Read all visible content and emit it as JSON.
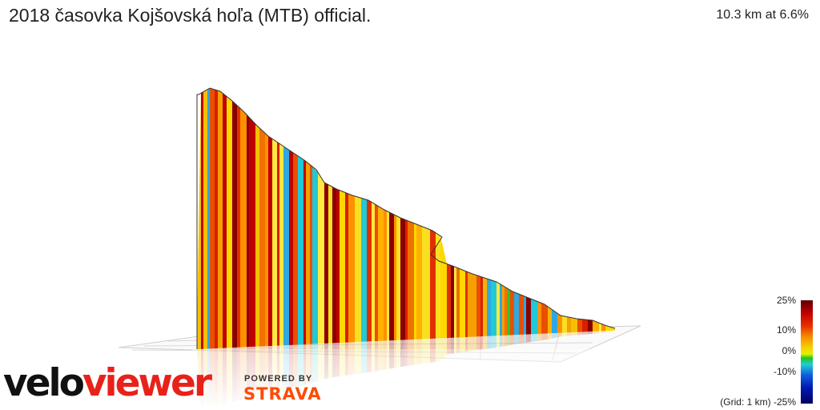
{
  "header": {
    "title": "2018 časovka Kojšovská hoľa (MTB) official.",
    "summary": "10.3 km at 6.6%"
  },
  "branding": {
    "logo_part1": "velo",
    "logo_part2": "viewer",
    "powered_by": "POWERED BY",
    "strava": "STRAVA"
  },
  "legend": {
    "ticks": [
      "25%",
      "10%",
      "0%",
      "-10%",
      "-25%"
    ],
    "grid_note": "(Grid: 1 km)"
  },
  "colors": {
    "brand_red": "#e8221b",
    "strava_orange": "#fc4c02"
  }
}
